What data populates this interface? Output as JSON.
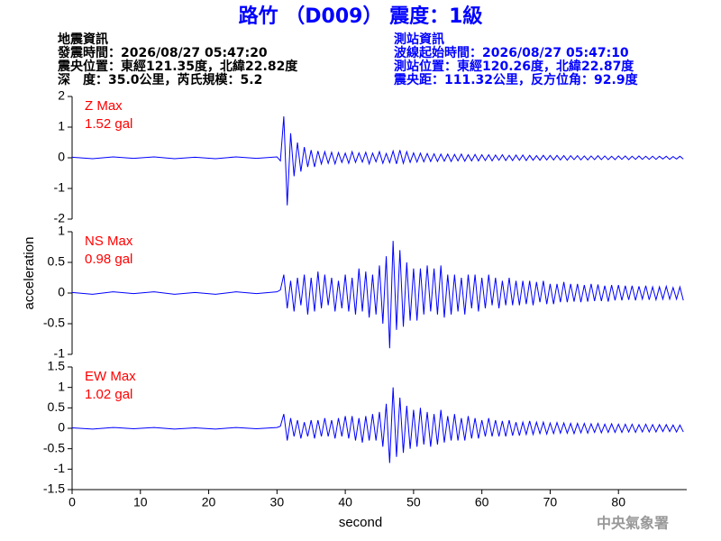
{
  "chart_data": {
    "type": "line",
    "title": "路竹 （D009） 震度：1級",
    "station_info": {
      "left": [
        "地震資訊",
        "發震時間：2026/08/27 05:47:20",
        "震央位置：東經121.35度，北緯22.82度",
        "深　度：35.0公里，芮氏規模：5.2"
      ],
      "right": [
        "測站資訊",
        "波線起始時間：2026/08/27 05:47:10",
        "測站位置：東經120.26度，北緯22.87度",
        "震央距：111.32公里，反方位角：92.9度"
      ]
    },
    "y_label": "acceleration",
    "x_label": "second",
    "credit": "中央氣象署",
    "xlim": [
      0,
      90
    ],
    "xticks": [
      0,
      10,
      20,
      30,
      40,
      50,
      60,
      70,
      80
    ],
    "x": [
      0,
      3,
      6,
      9,
      12,
      15,
      18,
      21,
      24,
      27,
      30,
      30.5,
      31,
      31.5,
      32,
      32.5,
      33,
      33.5,
      34,
      34.5,
      35,
      35.5,
      36,
      36.5,
      37,
      37.5,
      38,
      38.5,
      39,
      39.5,
      40,
      40.5,
      41,
      41.5,
      42,
      42.5,
      43,
      43.5,
      44,
      44.5,
      45,
      45.5,
      46,
      46.5,
      47,
      47.5,
      48,
      48.5,
      49,
      49.5,
      50,
      50.5,
      51,
      51.5,
      52,
      52.5,
      53,
      53.5,
      54,
      54.5,
      55,
      55.5,
      56,
      56.5,
      57,
      57.5,
      58,
      58.5,
      59,
      59.5,
      60,
      60.5,
      61,
      61.5,
      62,
      62.5,
      63,
      63.5,
      64,
      64.5,
      65,
      65.5,
      66,
      66.5,
      67,
      67.5,
      68,
      68.5,
      69,
      69.5,
      70,
      70.5,
      71,
      71.5,
      72,
      72.5,
      73,
      73.5,
      74,
      74.5,
      75,
      75.5,
      76,
      76.5,
      77,
      77.5,
      78,
      78.5,
      79,
      79.5,
      80,
      80.5,
      81,
      81.5,
      82,
      82.5,
      83,
      83.5,
      84,
      84.5,
      85,
      85.5,
      86,
      86.5,
      87,
      87.5,
      88,
      88.5,
      89,
      89.5
    ],
    "series": [
      {
        "name": "Z Max",
        "max_label": "1.52 gal",
        "color": "#0000ff",
        "ylim": [
          -2,
          2
        ],
        "yticks": [
          -2,
          -1,
          0,
          1,
          2
        ],
        "values": [
          0.02,
          -0.03,
          0.03,
          -0.02,
          0.03,
          -0.03,
          0.02,
          -0.03,
          0.03,
          -0.02,
          0.03,
          -0.1,
          1.35,
          -1.55,
          0.8,
          -0.6,
          0.5,
          -0.45,
          0.35,
          -0.3,
          0.25,
          -0.3,
          0.22,
          -0.2,
          0.2,
          -0.18,
          0.18,
          -0.2,
          0.17,
          -0.15,
          0.15,
          -0.18,
          0.2,
          -0.15,
          0.16,
          -0.14,
          0.18,
          -0.2,
          0.15,
          -0.13,
          0.2,
          -0.18,
          0.14,
          -0.16,
          0.22,
          -0.2,
          0.25,
          -0.18,
          0.2,
          -0.15,
          0.16,
          -0.14,
          0.15,
          -0.13,
          0.14,
          -0.12,
          0.13,
          -0.12,
          0.12,
          -0.11,
          0.12,
          -0.12,
          0.11,
          -0.1,
          0.12,
          -0.11,
          0.1,
          -0.1,
          0.11,
          -0.1,
          0.1,
          -0.09,
          0.1,
          -0.1,
          0.09,
          -0.08,
          0.1,
          -0.09,
          0.08,
          -0.09,
          0.09,
          -0.08,
          0.09,
          -0.09,
          0.08,
          -0.08,
          0.07,
          -0.08,
          0.08,
          -0.07,
          0.08,
          -0.07,
          0.08,
          -0.07,
          0.07,
          -0.08,
          0.07,
          -0.06,
          0.07,
          -0.07,
          0.06,
          -0.07,
          0.06,
          -0.06,
          0.07,
          -0.06,
          0.06,
          -0.06,
          0.05,
          -0.06,
          0.06,
          -0.05,
          0.06,
          -0.06,
          0.05,
          -0.05,
          0.06,
          -0.05,
          0.05,
          -0.05,
          0.05,
          -0.05,
          0.05,
          -0.04,
          0.05,
          -0.05,
          0.04,
          -0.04,
          0.05,
          -0.04
        ]
      },
      {
        "name": "NS Max",
        "max_label": "0.98 gal",
        "color": "#0000ff",
        "ylim": [
          -1,
          1
        ],
        "yticks": [
          -1,
          -0.5,
          0,
          0.5,
          1
        ],
        "values": [
          0.01,
          -0.02,
          0.02,
          -0.01,
          0.02,
          -0.02,
          0.01,
          -0.02,
          0.02,
          -0.01,
          0.02,
          0.05,
          0.3,
          -0.25,
          0.2,
          -0.3,
          0.25,
          -0.2,
          0.3,
          -0.35,
          0.25,
          -0.3,
          0.35,
          -0.25,
          0.3,
          -0.2,
          0.25,
          -0.3,
          0.2,
          -0.25,
          0.3,
          -0.3,
          0.25,
          -0.35,
          0.4,
          -0.3,
          0.35,
          -0.4,
          0.3,
          -0.35,
          0.45,
          -0.5,
          0.6,
          -0.9,
          0.85,
          -0.6,
          0.7,
          -0.55,
          0.5,
          -0.45,
          0.4,
          -0.45,
          0.4,
          -0.35,
          0.45,
          -0.3,
          0.4,
          -0.35,
          0.45,
          -0.4,
          0.3,
          -0.35,
          0.3,
          -0.3,
          0.25,
          -0.35,
          0.3,
          -0.25,
          0.3,
          -0.3,
          0.25,
          -0.25,
          0.3,
          -0.2,
          0.25,
          -0.25,
          0.2,
          -0.2,
          0.25,
          -0.2,
          0.2,
          -0.2,
          0.2,
          -0.18,
          0.2,
          -0.2,
          0.18,
          -0.15,
          0.2,
          -0.18,
          0.15,
          -0.18,
          0.15,
          -0.15,
          0.18,
          -0.15,
          0.15,
          -0.14,
          0.15,
          -0.15,
          0.13,
          -0.14,
          0.15,
          -0.13,
          0.14,
          -0.13,
          0.12,
          -0.14,
          0.13,
          -0.12,
          0.13,
          -0.12,
          0.12,
          -0.11,
          0.12,
          -0.12,
          0.11,
          -0.1,
          0.12,
          -0.11,
          0.1,
          -0.11,
          0.1,
          -0.1,
          0.11,
          -0.1,
          0.09,
          -0.1,
          0.1,
          -0.12
        ]
      },
      {
        "name": "EW Max",
        "max_label": "1.02 gal",
        "color": "#0000ff",
        "ylim": [
          -1.5,
          1.5
        ],
        "yticks": [
          -1.5,
          -1,
          -0.5,
          0,
          0.5,
          1,
          1.5
        ],
        "values": [
          0.01,
          -0.02,
          0.02,
          -0.01,
          0.02,
          -0.02,
          0.01,
          -0.02,
          0.02,
          -0.01,
          0.02,
          0.05,
          0.35,
          -0.3,
          0.25,
          -0.2,
          0.2,
          -0.25,
          0.15,
          -0.2,
          0.2,
          -0.25,
          0.2,
          -0.2,
          0.25,
          -0.2,
          0.2,
          -0.25,
          0.25,
          -0.2,
          0.3,
          -0.25,
          0.3,
          -0.3,
          0.25,
          -0.35,
          0.3,
          -0.3,
          0.35,
          -0.3,
          0.4,
          -0.45,
          0.6,
          -0.85,
          1.0,
          -0.7,
          0.75,
          -0.6,
          0.55,
          -0.5,
          0.45,
          -0.45,
          0.5,
          -0.4,
          0.4,
          -0.45,
          0.35,
          -0.4,
          0.45,
          -0.35,
          0.3,
          -0.3,
          0.35,
          -0.3,
          0.25,
          -0.3,
          0.3,
          -0.25,
          0.25,
          -0.25,
          0.2,
          -0.2,
          0.25,
          -0.2,
          0.2,
          -0.2,
          0.18,
          -0.2,
          0.2,
          -0.18,
          0.15,
          -0.18,
          0.15,
          -0.15,
          0.18,
          -0.15,
          0.15,
          -0.13,
          0.15,
          -0.14,
          0.13,
          -0.13,
          0.14,
          -0.12,
          0.13,
          -0.12,
          0.12,
          -0.13,
          0.12,
          -0.11,
          0.12,
          -0.12,
          0.11,
          -0.1,
          0.12,
          -0.11,
          0.1,
          -0.1,
          0.11,
          -0.1,
          0.1,
          -0.1,
          0.1,
          -0.09,
          0.1,
          -0.1,
          0.09,
          -0.09,
          0.1,
          -0.09,
          0.09,
          -0.09,
          0.09,
          -0.08,
          0.09,
          -0.08,
          0.08,
          -0.09,
          0.08,
          -0.09
        ]
      }
    ]
  }
}
